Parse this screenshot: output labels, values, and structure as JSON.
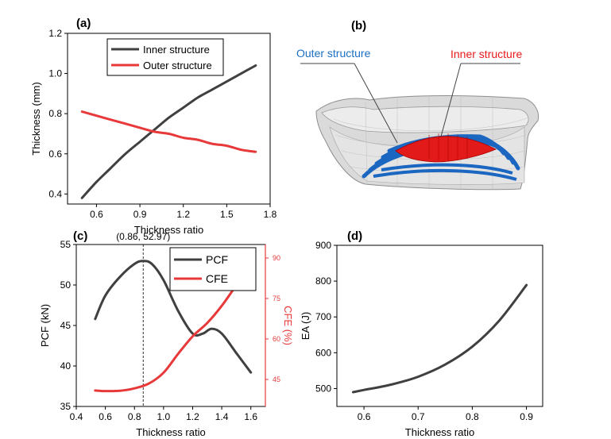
{
  "chart_data": [
    {
      "panel": "(a)",
      "type": "line",
      "xlabel": "Thickness ratio",
      "ylabel": "Thickness (mm)",
      "xlim": [
        0.4,
        1.8
      ],
      "ylim": [
        0.35,
        1.2
      ],
      "xticks": [
        "0.6",
        "0.9",
        "1.2",
        "1.5",
        "1.8"
      ],
      "yticks": [
        "0.4",
        "0.6",
        "0.8",
        "1.0",
        "1.2"
      ],
      "legend_position": "top",
      "series": [
        {
          "name": "Inner structure",
          "color": "#404040",
          "x": [
            0.5,
            0.6,
            0.7,
            0.8,
            0.9,
            1.0,
            1.1,
            1.2,
            1.3,
            1.4,
            1.5,
            1.6,
            1.7
          ],
          "y": [
            0.38,
            0.46,
            0.53,
            0.6,
            0.66,
            0.72,
            0.78,
            0.83,
            0.88,
            0.92,
            0.96,
            1.0,
            1.04
          ]
        },
        {
          "name": "Outer structure",
          "color": "#e8393a",
          "x": [
            0.5,
            0.6,
            0.7,
            0.8,
            0.9,
            1.0,
            1.1,
            1.2,
            1.3,
            1.4,
            1.5,
            1.6,
            1.7
          ],
          "y": [
            0.81,
            0.79,
            0.77,
            0.75,
            0.73,
            0.71,
            0.7,
            0.68,
            0.67,
            0.65,
            0.64,
            0.62,
            0.61
          ]
        }
      ]
    },
    {
      "panel": "(b)",
      "type": "diagram",
      "labels": [
        {
          "text": "Outer structure",
          "color": "#1a6fc4"
        },
        {
          "text": "Inner structure",
          "color": "#e8191a"
        }
      ]
    },
    {
      "panel": "(c)",
      "type": "line",
      "xlabel": "Thickness ratio",
      "ylabel": "PCF (kN)",
      "y2label": "CFE (%)",
      "xlim": [
        0.4,
        1.7
      ],
      "ylim": [
        35,
        55
      ],
      "y2lim": [
        35,
        95
      ],
      "xticks": [
        "0.4",
        "0.6",
        "0.8",
        "1.0",
        "1.2",
        "1.4",
        "1.6"
      ],
      "yticks": [
        "35",
        "40",
        "45",
        "50",
        "55"
      ],
      "y2ticks": [
        "45",
        "60",
        "75",
        "90"
      ],
      "legend_position": "top-right",
      "annotation": {
        "text": "(0.86, 52.97)",
        "x": 0.86,
        "y": 52.97
      },
      "series": [
        {
          "name": "PCF",
          "axis": "left",
          "color": "#404040",
          "x": [
            0.53,
            0.6,
            0.7,
            0.8,
            0.86,
            0.92,
            1.0,
            1.1,
            1.2,
            1.27,
            1.33,
            1.4,
            1.5,
            1.6
          ],
          "y": [
            45.8,
            48.7,
            51.0,
            52.6,
            52.97,
            52.6,
            50.6,
            46.8,
            44.0,
            44.0,
            44.6,
            44.0,
            41.6,
            39.2
          ]
        },
        {
          "name": "CFE",
          "axis": "right",
          "color": "#e8393a",
          "x": [
            0.53,
            0.6,
            0.7,
            0.8,
            0.9,
            1.0,
            1.1,
            1.2,
            1.3,
            1.4,
            1.5,
            1.6
          ],
          "y": [
            40.9,
            40.7,
            40.8,
            41.7,
            43.5,
            47.5,
            54.5,
            61.0,
            65.9,
            72.3,
            80.0,
            88.5
          ]
        }
      ]
    },
    {
      "panel": "(d)",
      "type": "line",
      "xlabel": "Thickness ratio",
      "ylabel": "EA (J)",
      "xlim": [
        0.55,
        0.93
      ],
      "ylim": [
        450,
        900
      ],
      "xticks": [
        "0.6",
        "0.7",
        "0.8",
        "0.9"
      ],
      "yticks": [
        "500",
        "600",
        "700",
        "800",
        "900"
      ],
      "series": [
        {
          "color": "#404040",
          "x": [
            0.58,
            0.6,
            0.65,
            0.7,
            0.75,
            0.8,
            0.85,
            0.9
          ],
          "y": [
            490,
            496,
            511,
            533,
            567,
            617,
            690,
            789
          ]
        }
      ]
    }
  ]
}
